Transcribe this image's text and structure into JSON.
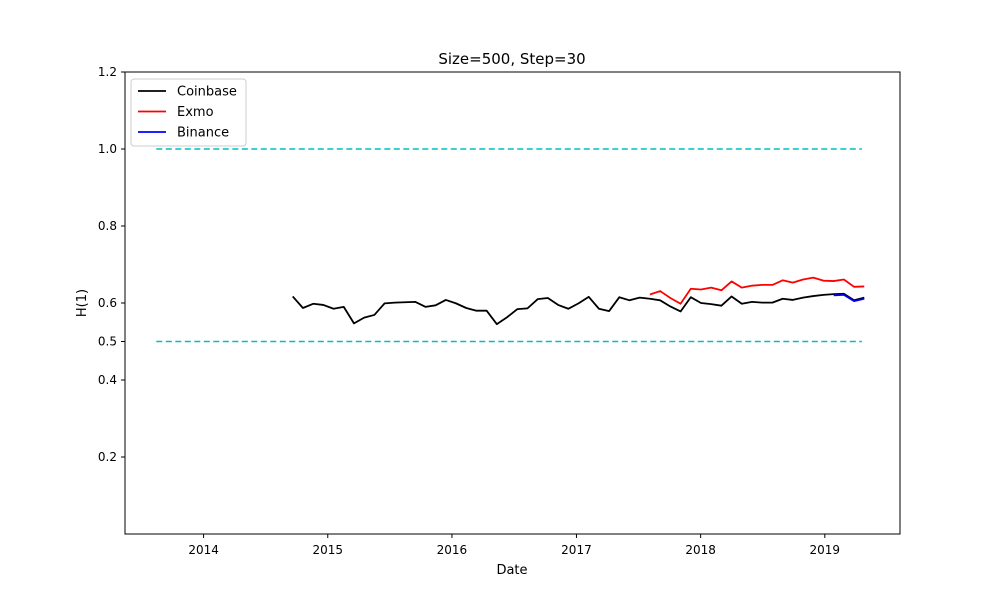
{
  "chart_data": {
    "type": "line",
    "title": "Size=500, Step=30",
    "xlabel": "Date",
    "ylabel": "H(1)",
    "xlim": [
      "2013-05-15",
      "2019-08-10"
    ],
    "ylim": [
      0.0,
      1.2
    ],
    "xticks": [
      "2014",
      "2015",
      "2016",
      "2017",
      "2018",
      "2019"
    ],
    "yticks": [
      "0.2",
      "0.4",
      "0.5",
      "0.6",
      "0.8",
      "1.0",
      "1.2"
    ],
    "legend": "upper-left",
    "grid": false,
    "reference_lines": [
      {
        "y": 1.0,
        "x_start": "2013-08-15",
        "x_end": "2019-04-20",
        "color": "#00bfbf",
        "style": "dashed"
      },
      {
        "y": 0.5,
        "x_start": "2013-08-15",
        "x_end": "2019-04-20",
        "color": "#00bfbf",
        "style": "dashed"
      }
    ],
    "series": [
      {
        "name": "Coinbase",
        "color": "#000000",
        "x": [
          "2014-09-20",
          "2014-10-20",
          "2014-11-19",
          "2014-12-19",
          "2015-01-18",
          "2015-02-17",
          "2015-03-19",
          "2015-04-18",
          "2015-05-18",
          "2015-06-17",
          "2015-07-17",
          "2015-08-16",
          "2015-09-15",
          "2015-10-15",
          "2015-11-14",
          "2015-12-14",
          "2016-01-13",
          "2016-02-12",
          "2016-03-13",
          "2016-04-12",
          "2016-05-12",
          "2016-06-11",
          "2016-07-11",
          "2016-08-10",
          "2016-09-09",
          "2016-10-09",
          "2016-11-08",
          "2016-12-08",
          "2017-01-07",
          "2017-02-06",
          "2017-03-08",
          "2017-04-07",
          "2017-05-07",
          "2017-06-06",
          "2017-07-06",
          "2017-08-05",
          "2017-09-04",
          "2017-10-04",
          "2017-11-03",
          "2017-12-03",
          "2018-01-02",
          "2018-02-01",
          "2018-03-03",
          "2018-04-02",
          "2018-05-02",
          "2018-06-01",
          "2018-07-01",
          "2018-07-31",
          "2018-08-30",
          "2018-09-29",
          "2018-10-29",
          "2018-11-28",
          "2018-12-28",
          "2019-01-27",
          "2019-02-26",
          "2019-03-28",
          "2019-04-27"
        ],
        "y": [
          0.617,
          0.587,
          0.598,
          0.595,
          0.585,
          0.59,
          0.547,
          0.562,
          0.569,
          0.599,
          0.601,
          0.602,
          0.603,
          0.59,
          0.594,
          0.608,
          0.599,
          0.587,
          0.58,
          0.58,
          0.545,
          0.563,
          0.584,
          0.586,
          0.61,
          0.613,
          0.595,
          0.585,
          0.599,
          0.616,
          0.585,
          0.579,
          0.615,
          0.607,
          0.614,
          0.611,
          0.607,
          0.591,
          0.578,
          0.615,
          0.6,
          0.597,
          0.593,
          0.617,
          0.598,
          0.603,
          0.601,
          0.601,
          0.611,
          0.608,
          0.614,
          0.618,
          0.621,
          0.623,
          0.624,
          0.607,
          0.614
        ]
      },
      {
        "name": "Exmo",
        "color": "#ff0000",
        "x": [
          "2017-08-05",
          "2017-09-04",
          "2017-10-04",
          "2017-11-03",
          "2017-12-03",
          "2018-01-02",
          "2018-02-01",
          "2018-03-03",
          "2018-04-02",
          "2018-05-02",
          "2018-06-01",
          "2018-07-01",
          "2018-07-31",
          "2018-08-30",
          "2018-09-29",
          "2018-10-29",
          "2018-11-28",
          "2018-12-28",
          "2019-01-27",
          "2019-02-26",
          "2019-03-28",
          "2019-04-27"
        ],
        "y": [
          0.622,
          0.631,
          0.613,
          0.598,
          0.637,
          0.635,
          0.64,
          0.633,
          0.656,
          0.64,
          0.645,
          0.647,
          0.647,
          0.659,
          0.653,
          0.661,
          0.666,
          0.658,
          0.657,
          0.661,
          0.642,
          0.643
        ]
      },
      {
        "name": "Binance",
        "color": "#0000ff",
        "x": [
          "2019-01-27",
          "2019-02-26",
          "2019-03-28",
          "2019-04-27"
        ],
        "y": [
          0.62,
          0.621,
          0.605,
          0.611
        ]
      }
    ]
  }
}
